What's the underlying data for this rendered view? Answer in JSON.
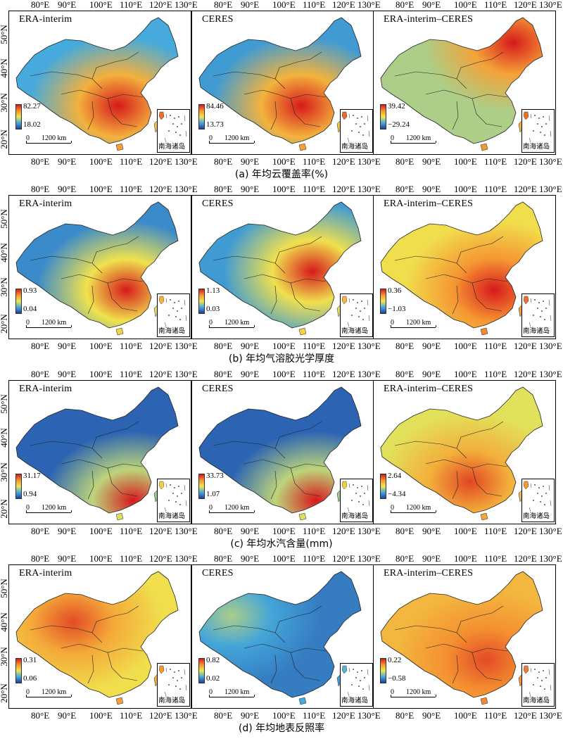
{
  "rows": [
    {
      "caption": "(a) 年均云覆盖率(%)",
      "panels": [
        {
          "title": "ERA-interim",
          "max": "82.27",
          "min": "18.02",
          "base": 0.35,
          "warm_center": [
            0.63,
            0.7
          ],
          "warm_strength": 0.85
        },
        {
          "title": "CERES",
          "max": "84.46",
          "min": "13.73",
          "base": 0.3,
          "warm_center": [
            0.63,
            0.7
          ],
          "warm_strength": 0.95
        },
        {
          "title": "ERA-interim–CERES",
          "max": "39.42",
          "min": "−29.24",
          "base": 0.5,
          "warm_center": [
            0.82,
            0.2
          ],
          "warm_strength": 0.6
        }
      ]
    },
    {
      "caption": "(b) 年均气溶胶光学厚度",
      "panels": [
        {
          "title": "ERA-interim",
          "max": "0.93",
          "min": "0.04",
          "base": 0.25,
          "warm_center": [
            0.68,
            0.7
          ],
          "warm_strength": 0.8
        },
        {
          "title": "CERES",
          "max": "1.13",
          "min": "0.03",
          "base": 0.3,
          "warm_center": [
            0.7,
            0.55
          ],
          "warm_strength": 0.7
        },
        {
          "title": "ERA-interim–CERES",
          "max": "0.36",
          "min": "−1.03",
          "base": 0.62,
          "warm_center": [
            0.7,
            0.7
          ],
          "warm_strength": 0.4
        }
      ]
    },
    {
      "caption": "(c) 年均水汽含量(mm)",
      "panels": [
        {
          "title": "ERA-interim",
          "max": "31.17",
          "min": "0.94",
          "base": 0.12,
          "warm_center": [
            0.72,
            0.9
          ],
          "warm_strength": 0.9
        },
        {
          "title": "CERES",
          "max": "33.73",
          "min": "1.07",
          "base": 0.12,
          "warm_center": [
            0.72,
            0.9
          ],
          "warm_strength": 0.9
        },
        {
          "title": "ERA-interim–CERES",
          "max": "2.64",
          "min": "−4.34",
          "base": 0.58,
          "warm_center": [
            0.55,
            0.75
          ],
          "warm_strength": 0.35
        }
      ]
    },
    {
      "caption": "(d) 年均地表反照率",
      "panels": [
        {
          "title": "ERA-interim",
          "max": "0.31",
          "min": "0.06",
          "base": 0.62,
          "warm_center": [
            0.35,
            0.4
          ],
          "warm_strength": 0.3
        },
        {
          "title": "CERES",
          "max": "0.82",
          "min": "0.02",
          "base": 0.2,
          "warm_center": [
            0.2,
            0.35
          ],
          "warm_strength": 0.3
        },
        {
          "title": "ERA-interim–CERES",
          "max": "0.22",
          "min": "−0.58",
          "base": 0.72,
          "warm_center": [
            0.65,
            0.7
          ],
          "warm_strength": 0.2
        }
      ]
    }
  ],
  "lon_ticks": [
    "80°E",
    "90°E",
    "100°E",
    "110°E",
    "120°E",
    "130°E"
  ],
  "lat_ticks": [
    "50°N",
    "40°N",
    "30°N",
    "20°N"
  ],
  "scale": {
    "zero": "0",
    "dist": "1200 km"
  },
  "inset_label": "南海诸岛",
  "colors": {
    "low": "#1f3f9e",
    "mid": "#f2e84b",
    "high": "#d7191c",
    "map_blue": "#4a86c8",
    "border": "#222222"
  }
}
